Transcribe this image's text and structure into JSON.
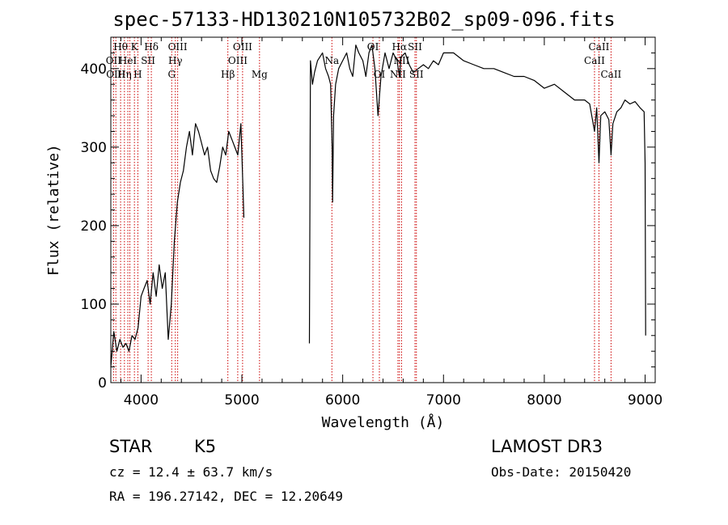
{
  "chart_data": {
    "type": "line",
    "title": "spec-57133-HD130210N105732B02_sp09-096.fits",
    "xlabel": "Wavelength (Å)",
    "ylabel": "Flux (relative)",
    "xlim": [
      3700,
      9100
    ],
    "ylim": [
      0,
      440
    ],
    "xticks": [
      4000,
      5000,
      6000,
      7000,
      8000,
      9000
    ],
    "yticks": [
      0,
      100,
      200,
      300,
      400
    ],
    "grid": false,
    "series": [
      {
        "x": [
          3700,
          3730,
          3760,
          3790,
          3820,
          3850,
          3880,
          3910,
          3940,
          3970,
          4000,
          4030,
          4060,
          4090,
          4120,
          4150,
          4180,
          4210,
          4240,
          4270,
          4300,
          4330,
          4360,
          4390,
          4420,
          4450,
          4480,
          4510,
          4540,
          4570,
          4600,
          4630,
          4660,
          4690,
          4720,
          4750,
          4780,
          4810,
          4840,
          4870,
          4900,
          4930,
          4960,
          4990,
          5010,
          5020
        ],
        "y": [
          20,
          65,
          40,
          55,
          45,
          50,
          40,
          60,
          55,
          70,
          110,
          120,
          130,
          100,
          140,
          110,
          150,
          120,
          140,
          55,
          100,
          180,
          230,
          255,
          270,
          300,
          320,
          290,
          330,
          320,
          305,
          290,
          300,
          270,
          260,
          255,
          275,
          300,
          290,
          320,
          310,
          300,
          290,
          330,
          250,
          210
        ]
      },
      {
        "x": [
          5670,
          5680,
          5700,
          5720,
          5750,
          5800,
          5830,
          5860,
          5880,
          5895,
          5900,
          5910,
          5930,
          5960,
          6000,
          6040,
          6070,
          6100,
          6130,
          6160,
          6200,
          6230,
          6260,
          6290,
          6320,
          6350,
          6380,
          6420,
          6460,
          6500,
          6540,
          6563,
          6580,
          6620,
          6660,
          6700,
          6750,
          6800,
          6850,
          6900,
          6950,
          7000,
          7100,
          7200,
          7300,
          7400,
          7500,
          7600,
          7700,
          7800,
          7900,
          8000,
          8100,
          8200,
          8300,
          8400,
          8450,
          8498,
          8520,
          8542,
          8560,
          8600,
          8640,
          8662,
          8680,
          8720,
          8760,
          8800,
          8850,
          8900,
          8950,
          8990,
          9000,
          9005
        ],
        "y": [
          50,
          410,
          380,
          395,
          410,
          420,
          400,
          390,
          380,
          300,
          230,
          340,
          380,
          400,
          410,
          420,
          400,
          390,
          430,
          420,
          410,
          390,
          420,
          430,
          400,
          340,
          390,
          420,
          400,
          420,
          410,
          390,
          415,
          420,
          405,
          395,
          400,
          405,
          400,
          410,
          405,
          420,
          420,
          410,
          405,
          400,
          400,
          395,
          390,
          390,
          385,
          375,
          380,
          370,
          360,
          360,
          355,
          320,
          350,
          280,
          340,
          345,
          335,
          290,
          330,
          345,
          350,
          360,
          355,
          358,
          350,
          345,
          280,
          60
        ]
      }
    ],
    "line_marks": [
      {
        "x": 3727,
        "labels": [
          "OII"
        ],
        "row": 1
      },
      {
        "x": 3750,
        "labels": [
          "OIII"
        ],
        "row": 2
      },
      {
        "x": 3797,
        "labels": [
          "Hθ"
        ],
        "row": 0
      },
      {
        "x": 3835,
        "labels": [
          "Hη"
        ],
        "row": 2
      },
      {
        "x": 3869,
        "labels": [
          "HeI"
        ],
        "row": 1
      },
      {
        "x": 3889,
        "labels": [],
        "row": 0
      },
      {
        "x": 3934,
        "labels": [
          "K"
        ],
        "row": 0
      },
      {
        "x": 3968,
        "labels": [
          "H"
        ],
        "row": 2
      },
      {
        "x": 4070,
        "labels": [
          "SII"
        ],
        "row": 1
      },
      {
        "x": 4102,
        "labels": [
          "Hδ"
        ],
        "row": 0
      },
      {
        "x": 4304,
        "labels": [
          "G"
        ],
        "row": 2
      },
      {
        "x": 4340,
        "labels": [
          "Hγ"
        ],
        "row": 1
      },
      {
        "x": 4363,
        "labels": [
          "OIII"
        ],
        "row": 0
      },
      {
        "x": 4861,
        "labels": [
          "Hβ"
        ],
        "row": 2
      },
      {
        "x": 4959,
        "labels": [
          "OIII"
        ],
        "row": 1
      },
      {
        "x": 5007,
        "labels": [
          "OIII"
        ],
        "row": 0
      },
      {
        "x": 5175,
        "labels": [
          "Mg"
        ],
        "row": 2
      },
      {
        "x": 5893,
        "labels": [
          "Na"
        ],
        "row": 1
      },
      {
        "x": 6300,
        "labels": [
          "OI"
        ],
        "row": 0
      },
      {
        "x": 6364,
        "labels": [
          "OI"
        ],
        "row": 2
      },
      {
        "x": 6548,
        "labels": [
          "NII"
        ],
        "row": 2
      },
      {
        "x": 6563,
        "labels": [
          "Hα"
        ],
        "row": 0
      },
      {
        "x": 6584,
        "labels": [
          "NII"
        ],
        "row": 1
      },
      {
        "x": 6717,
        "labels": [
          "SII"
        ],
        "row": 0
      },
      {
        "x": 6731,
        "labels": [
          "SII"
        ],
        "row": 2
      },
      {
        "x": 8498,
        "labels": [
          "CaII"
        ],
        "row": 1
      },
      {
        "x": 8542,
        "labels": [
          "CaII"
        ],
        "row": 0
      },
      {
        "x": 8662,
        "labels": [
          "CaII"
        ],
        "row": 2
      }
    ],
    "colors": {
      "spectrum": "#000000",
      "line_marks": "#cc0000"
    }
  },
  "info": {
    "obj_class": "STAR",
    "subclass": "K5",
    "survey": "LAMOST DR3",
    "cz": "cz = 12.4 ± 63.7 km/s",
    "obs_date": "Obs-Date: 20150420",
    "radec": "RA = 196.27142, DEC =  12.20649"
  }
}
